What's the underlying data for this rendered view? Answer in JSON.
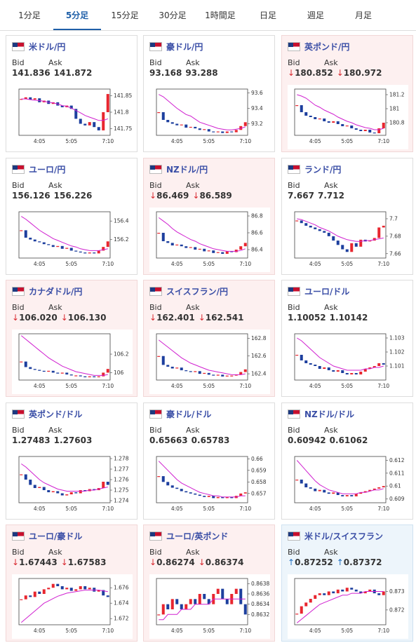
{
  "tabs": [
    "1分足",
    "5分足",
    "15分足",
    "30分足",
    "1時間足",
    "日足",
    "週足",
    "月足"
  ],
  "active_tab": 1,
  "bid_label": "Bid",
  "ask_label": "Ask",
  "x_categories": [
    null,
    null,
    null,
    null,
    "4:05",
    null,
    null,
    null,
    null,
    null,
    null,
    "5:05",
    null,
    null,
    null,
    null,
    null,
    null,
    null,
    "7:10"
  ],
  "panels": [
    {
      "title": "米ドル/円",
      "bid": "141.836",
      "ask": "141.872",
      "trend": null,
      "arrow": null,
      "chart": {
        "ylim": [
          141.73,
          141.87
        ],
        "yticks": [
          141.75,
          141.8,
          141.85
        ],
        "close": [
          141.84,
          141.845,
          141.838,
          141.842,
          141.83,
          141.835,
          141.825,
          141.83,
          141.82,
          141.815,
          141.82,
          141.81,
          141.78,
          141.765,
          141.76,
          141.77,
          141.755,
          141.745,
          141.8,
          141.855
        ],
        "ma": [
          141.84,
          141.84,
          141.838,
          141.836,
          141.835,
          141.833,
          141.83,
          141.828,
          141.825,
          141.82,
          141.818,
          141.812,
          141.805,
          141.798,
          141.79,
          141.785,
          141.78,
          141.775,
          141.775,
          141.78
        ]
      }
    },
    {
      "title": "豪ドル/円",
      "bid": "93.168",
      "ask": "93.288",
      "trend": null,
      "arrow": null,
      "chart": {
        "ylim": [
          93.05,
          93.65
        ],
        "yticks": [
          93.2,
          93.4,
          93.6
        ],
        "close": [
          93.35,
          93.25,
          93.22,
          93.2,
          93.18,
          93.19,
          93.15,
          93.16,
          93.14,
          93.12,
          93.13,
          93.1,
          93.09,
          93.1,
          93.08,
          93.1,
          93.09,
          93.12,
          93.17,
          93.22
        ],
        "ma": [
          93.58,
          93.55,
          93.5,
          93.45,
          93.4,
          93.36,
          93.32,
          93.3,
          93.26,
          93.22,
          93.2,
          93.18,
          93.16,
          93.14,
          93.13,
          93.12,
          93.12,
          93.13,
          93.14,
          93.16
        ]
      }
    },
    {
      "title": "英ポンド/円",
      "bid": "180.852",
      "ask": "180.972",
      "trend": "down",
      "arrow": "↓",
      "chart": {
        "ylim": [
          180.62,
          181.28
        ],
        "yticks": [
          180.8,
          181,
          181.2
        ],
        "close": [
          181.05,
          180.95,
          180.9,
          180.88,
          180.85,
          180.86,
          180.82,
          180.8,
          180.82,
          180.78,
          180.75,
          180.76,
          180.72,
          180.7,
          180.68,
          180.7,
          180.66,
          180.65,
          180.72,
          180.8
        ],
        "ma": [
          181.2,
          181.18,
          181.15,
          181.1,
          181.05,
          181.02,
          180.98,
          180.95,
          180.92,
          180.88,
          180.85,
          180.82,
          180.8,
          180.77,
          180.75,
          180.73,
          180.72,
          180.7,
          180.7,
          180.72
        ]
      }
    },
    {
      "title": "ユーロ/円",
      "bid": "156.126",
      "ask": "156.226",
      "trend": null,
      "arrow": null,
      "chart": {
        "ylim": [
          156.0,
          156.5
        ],
        "yticks": [
          156.2,
          156.4
        ],
        "close": [
          156.3,
          156.22,
          156.2,
          156.18,
          156.17,
          156.15,
          156.14,
          156.12,
          156.13,
          156.1,
          156.11,
          156.08,
          156.07,
          156.06,
          156.05,
          156.06,
          156.05,
          156.08,
          156.12,
          156.18
        ],
        "ma": [
          156.45,
          156.42,
          156.38,
          156.34,
          156.3,
          156.27,
          156.24,
          156.21,
          156.19,
          156.17,
          156.15,
          156.13,
          156.12,
          156.1,
          156.09,
          156.08,
          156.08,
          156.08,
          156.09,
          156.1
        ]
      }
    },
    {
      "title": "NZドル/円",
      "bid": "86.469",
      "ask": "86.589",
      "trend": "down",
      "arrow": "↓",
      "chart": {
        "ylim": [
          86.3,
          86.85
        ],
        "yticks": [
          86.4,
          86.6,
          86.8
        ],
        "close": [
          86.6,
          86.5,
          86.48,
          86.45,
          86.46,
          86.44,
          86.42,
          86.43,
          86.4,
          86.41,
          86.38,
          86.39,
          86.36,
          86.37,
          86.35,
          86.38,
          86.37,
          86.4,
          86.44,
          86.48
        ],
        "ma": [
          86.78,
          86.74,
          86.7,
          86.65,
          86.61,
          86.58,
          86.55,
          86.52,
          86.5,
          86.47,
          86.45,
          86.43,
          86.41,
          86.4,
          86.39,
          86.38,
          86.38,
          86.38,
          86.39,
          86.41
        ]
      }
    },
    {
      "title": "ランド/円",
      "bid": "7.667",
      "ask": "7.712",
      "trend": null,
      "arrow": null,
      "chart": {
        "ylim": [
          7.655,
          7.708
        ],
        "yticks": [
          7.66,
          7.68,
          7.7
        ],
        "close": [
          7.698,
          7.695,
          7.692,
          7.69,
          7.688,
          7.686,
          7.684,
          7.68,
          7.675,
          7.67,
          7.665,
          7.662,
          7.672,
          7.668,
          7.676,
          7.674,
          7.675,
          7.678,
          7.69,
          7.692
        ],
        "ma": [
          7.7,
          7.699,
          7.697,
          7.695,
          7.693,
          7.69,
          7.688,
          7.686,
          7.683,
          7.68,
          7.678,
          7.676,
          7.675,
          7.674,
          7.674,
          7.675,
          7.675,
          7.676,
          7.677,
          7.678
        ]
      }
    },
    {
      "title": "カナダドル/円",
      "bid": "106.020",
      "ask": "106.130",
      "trend": "down",
      "arrow": "↓",
      "chart": {
        "ylim": [
          105.92,
          106.42
        ],
        "yticks": [
          106,
          106.2
        ],
        "close": [
          106.12,
          106.06,
          106.04,
          106.03,
          106.02,
          106.01,
          106.02,
          106.0,
          105.99,
          106.0,
          105.98,
          105.97,
          105.97,
          105.96,
          105.95,
          105.96,
          105.95,
          105.96,
          106.0,
          106.04
        ],
        "ma": [
          106.4,
          106.36,
          106.32,
          106.28,
          106.24,
          106.2,
          106.16,
          106.13,
          106.1,
          106.07,
          106.05,
          106.03,
          106.01,
          106.0,
          105.99,
          105.98,
          105.97,
          105.97,
          105.97,
          105.98
        ]
      }
    },
    {
      "title": "スイスフラン/円",
      "bid": "162.401",
      "ask": "162.541",
      "trend": "down",
      "arrow": "↓",
      "chart": {
        "ylim": [
          162.33,
          162.85
        ],
        "yticks": [
          162.4,
          162.6,
          162.8
        ],
        "close": [
          162.6,
          162.5,
          162.48,
          162.46,
          162.47,
          162.44,
          162.43,
          162.42,
          162.43,
          162.4,
          162.41,
          162.39,
          162.38,
          162.39,
          162.37,
          162.38,
          162.38,
          162.39,
          162.42,
          162.45
        ],
        "ma": [
          162.78,
          162.74,
          162.7,
          162.66,
          162.62,
          162.58,
          162.55,
          162.52,
          162.5,
          162.48,
          162.46,
          162.44,
          162.43,
          162.42,
          162.41,
          162.4,
          162.39,
          162.39,
          162.39,
          162.4
        ]
      }
    },
    {
      "title": "ユーロ/ドル",
      "bid": "1.10052",
      "ask": "1.10142",
      "trend": null,
      "arrow": null,
      "chart": {
        "ylim": [
          1.1,
          1.1033
        ],
        "yticks": [
          1.101,
          1.102,
          1.103
        ],
        "close": [
          1.1018,
          1.1014,
          1.1012,
          1.1011,
          1.101,
          1.1008,
          1.1009,
          1.1007,
          1.1006,
          1.1007,
          1.1005,
          1.1004,
          1.1005,
          1.1004,
          1.1006,
          1.1008,
          1.1009,
          1.101,
          1.1012,
          1.1011
        ],
        "ma": [
          1.103,
          1.1028,
          1.1025,
          1.1022,
          1.1019,
          1.1016,
          1.1014,
          1.1012,
          1.101,
          1.1009,
          1.1008,
          1.1007,
          1.1007,
          1.1007,
          1.1007,
          1.1008,
          1.1008,
          1.1009,
          1.1009,
          1.101
        ]
      }
    },
    {
      "title": "英ポンド/ドル",
      "bid": "1.27483",
      "ask": "1.27603",
      "trend": null,
      "arrow": null,
      "chart": {
        "ylim": [
          1.2738,
          1.2782
        ],
        "yticks": [
          1.274,
          1.275,
          1.276,
          1.277,
          1.278
        ],
        "close": [
          1.2765,
          1.276,
          1.2755,
          1.2752,
          1.2753,
          1.275,
          1.2748,
          1.2749,
          1.2747,
          1.2745,
          1.2746,
          1.2748,
          1.2747,
          1.275,
          1.2749,
          1.2751,
          1.275,
          1.2752,
          1.2758,
          1.2755
        ],
        "ma": [
          1.2775,
          1.2772,
          1.2768,
          1.2764,
          1.276,
          1.2757,
          1.2755,
          1.2753,
          1.2751,
          1.275,
          1.2749,
          1.2749,
          1.2749,
          1.2749,
          1.2749,
          1.275,
          1.275,
          1.2751,
          1.2752,
          1.2753
        ]
      }
    },
    {
      "title": "豪ドル/ドル",
      "bid": "0.65663",
      "ask": "0.65783",
      "trend": null,
      "arrow": null,
      "chart": {
        "ylim": [
          0.6562,
          0.6602
        ],
        "yticks": [
          0.657,
          0.658,
          0.659,
          0.66
        ],
        "close": [
          0.6585,
          0.658,
          0.6577,
          0.6575,
          0.6574,
          0.6572,
          0.6571,
          0.657,
          0.6569,
          0.6568,
          0.6567,
          0.6568,
          0.6566,
          0.6567,
          0.6566,
          0.6567,
          0.6566,
          0.6568,
          0.657,
          0.6571
        ],
        "ma": [
          0.6598,
          0.6594,
          0.659,
          0.6586,
          0.6582,
          0.6579,
          0.6577,
          0.6575,
          0.6573,
          0.6571,
          0.657,
          0.6569,
          0.6568,
          0.6568,
          0.6567,
          0.6567,
          0.6567,
          0.6567,
          0.6568,
          0.6568
        ]
      }
    },
    {
      "title": "NZドル/ドル",
      "bid": "0.60942",
      "ask": "0.61062",
      "trend": null,
      "arrow": null,
      "chart": {
        "ylim": [
          0.6087,
          0.6123
        ],
        "yticks": [
          0.609,
          0.61,
          0.611,
          0.612
        ],
        "close": [
          0.6105,
          0.6102,
          0.6099,
          0.6098,
          0.6096,
          0.6097,
          0.6095,
          0.6094,
          0.6095,
          0.6093,
          0.6092,
          0.6093,
          0.6092,
          0.6094,
          0.6095,
          0.6096,
          0.6097,
          0.6098,
          0.6099,
          0.61
        ],
        "ma": [
          0.612,
          0.6116,
          0.6112,
          0.6108,
          0.6104,
          0.6101,
          0.6099,
          0.6097,
          0.6096,
          0.6095,
          0.6094,
          0.6094,
          0.6094,
          0.6094,
          0.6095,
          0.6095,
          0.6096,
          0.6097,
          0.6097,
          0.6098
        ]
      }
    },
    {
      "title": "ユーロ/豪ドル",
      "bid": "1.67443",
      "ask": "1.67583",
      "trend": "down",
      "arrow": "↓",
      "chart": {
        "ylim": [
          1.6712,
          1.6772
        ],
        "yticks": [
          1.672,
          1.674,
          1.676
        ],
        "close": [
          1.6745,
          1.675,
          1.6748,
          1.6755,
          1.6752,
          1.6758,
          1.676,
          1.6765,
          1.6762,
          1.6758,
          1.676,
          1.6756,
          1.6758,
          1.6762,
          1.6758,
          1.676,
          1.6755,
          1.6757,
          1.675,
          1.6748
        ],
        "ma": [
          1.6715,
          1.672,
          1.6725,
          1.673,
          1.6735,
          1.674,
          1.6743,
          1.6746,
          1.6749,
          1.6751,
          1.6753,
          1.6754,
          1.6755,
          1.6756,
          1.6757,
          1.6757,
          1.6757,
          1.6757,
          1.6756,
          1.6755
        ]
      }
    },
    {
      "title": "ユーロ/英ポンド",
      "bid": "0.86274",
      "ask": "0.86374",
      "trend": "down",
      "arrow": "↓",
      "chart": {
        "ylim": [
          0.863,
          0.8639
        ],
        "yticks": [
          0.8632,
          0.8634,
          0.8636,
          0.8638
        ],
        "close": [
          0.8632,
          0.8634,
          0.8633,
          0.8635,
          0.8634,
          0.8633,
          0.8634,
          0.8635,
          0.8634,
          0.8636,
          0.8635,
          0.8634,
          0.8636,
          0.8637,
          0.8635,
          0.8634,
          0.8636,
          0.8637,
          0.8634,
          0.8632
        ],
        "ma": [
          0.8631,
          0.8631,
          0.8632,
          0.8632,
          0.8632,
          0.8633,
          0.8633,
          0.8633,
          0.8634,
          0.8634,
          0.8634,
          0.8634,
          0.8635,
          0.8635,
          0.8635,
          0.8635,
          0.8635,
          0.8635,
          0.8635,
          0.8635
        ]
      }
    },
    {
      "title": "米ドル/スイスフラン",
      "bid": "0.87252",
      "ask": "0.87372",
      "trend": "up",
      "arrow": "↑",
      "chart": {
        "ylim": [
          0.8712,
          0.8737
        ],
        "yticks": [
          0.872,
          0.873
        ],
        "close": [
          0.8718,
          0.8722,
          0.8724,
          0.8726,
          0.8728,
          0.8729,
          0.8728,
          0.873,
          0.8729,
          0.8731,
          0.873,
          0.8732,
          0.8731,
          0.873,
          0.8729,
          0.873,
          0.8731,
          0.8729,
          0.8728,
          0.873
        ],
        "ma": [
          0.8713,
          0.8715,
          0.8717,
          0.8719,
          0.8721,
          0.8723,
          0.8724,
          0.8725,
          0.8726,
          0.8727,
          0.8728,
          0.8728,
          0.8729,
          0.8729,
          0.8729,
          0.873,
          0.873,
          0.873,
          0.873,
          0.873
        ]
      }
    }
  ]
}
